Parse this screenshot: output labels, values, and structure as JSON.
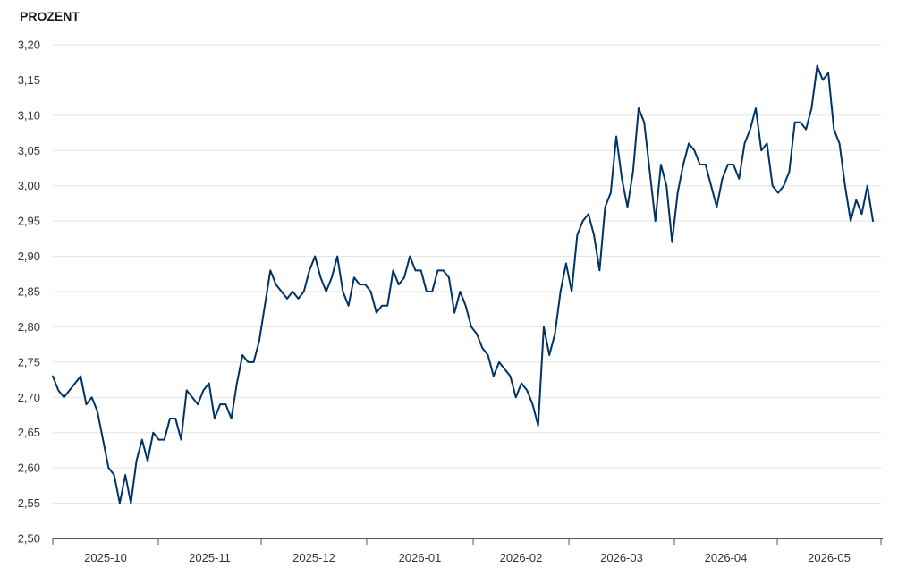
{
  "chart_data": {
    "type": "line",
    "title": "",
    "ylabel": "PROZENT",
    "xlabel": "",
    "ylim": [
      2.5,
      3.2
    ],
    "y_ticks": [
      "2,50",
      "2,55",
      "2,60",
      "2,65",
      "2,70",
      "2,75",
      "2,80",
      "2,85",
      "2,90",
      "2,95",
      "3,00",
      "3,05",
      "3,10",
      "3,15",
      "3,20"
    ],
    "x_tick_labels": [
      "2025-10",
      "2025-11",
      "2025-12",
      "2026-01",
      "2026-02",
      "2026-03",
      "2026-04",
      "2026-05"
    ],
    "grid": true,
    "colors": {
      "line": "#003366",
      "grid": "#e3e3e3",
      "axis": "#555555"
    },
    "series": [
      {
        "values": [
          2.73,
          2.71,
          2.7,
          2.71,
          2.72,
          2.73,
          2.69,
          2.7,
          2.68,
          2.64,
          2.6,
          2.59,
          2.55,
          2.59,
          2.55,
          2.61,
          2.64,
          2.61,
          2.65,
          2.64,
          2.64,
          2.67,
          2.67,
          2.64,
          2.71,
          2.7,
          2.69,
          2.71,
          2.72,
          2.67,
          2.69,
          2.69,
          2.67,
          2.72,
          2.76,
          2.75,
          2.75,
          2.78,
          2.83,
          2.88,
          2.86,
          2.85,
          2.84,
          2.85,
          2.84,
          2.85,
          2.88,
          2.9,
          2.87,
          2.85,
          2.87,
          2.9,
          2.85,
          2.83,
          2.87,
          2.86,
          2.86,
          2.85,
          2.82,
          2.83,
          2.83,
          2.88,
          2.86,
          2.87,
          2.9,
          2.88,
          2.88,
          2.85,
          2.85,
          2.88,
          2.88,
          2.87,
          2.82,
          2.85,
          2.83,
          2.8,
          2.79,
          2.77,
          2.76,
          2.73,
          2.75,
          2.74,
          2.73,
          2.7,
          2.72,
          2.71,
          2.69,
          2.66,
          2.8,
          2.76,
          2.79,
          2.85,
          2.89,
          2.85,
          2.93,
          2.95,
          2.96,
          2.93,
          2.88,
          2.97,
          2.99,
          3.07,
          3.01,
          2.97,
          3.02,
          3.11,
          3.09,
          3.02,
          2.95,
          3.03,
          3.0,
          2.92,
          2.99,
          3.03,
          3.06,
          3.05,
          3.03,
          3.03,
          3.0,
          2.97,
          3.01,
          3.03,
          3.03,
          3.01,
          3.06,
          3.08,
          3.11,
          3.05,
          3.06,
          3.0,
          2.99,
          3.0,
          3.02,
          3.09,
          3.09,
          3.08,
          3.11,
          3.17,
          3.15,
          3.16,
          3.08,
          3.06,
          3.0,
          2.95,
          2.98,
          2.96,
          3.0,
          2.95
        ]
      }
    ]
  }
}
